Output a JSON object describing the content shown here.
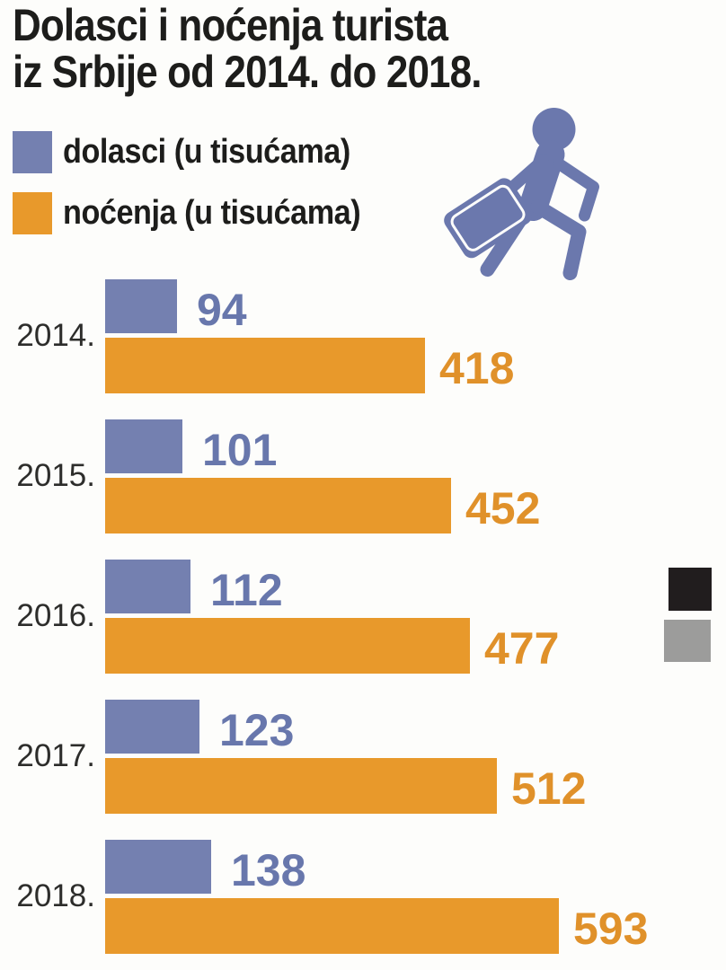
{
  "title": {
    "line1": "Dolasci i noćenja turista",
    "line2": "iz Srbije od 2014. do 2018."
  },
  "legend": {
    "dolasci": "dolasci (u tisućama)",
    "nocenja": "noćenja (u tisućama)"
  },
  "icon": {
    "name": "traveler-with-suitcase"
  },
  "colors": {
    "background": "#fdfdfb",
    "title_text": "#1d1d1b",
    "year_text": "#2d2d2b",
    "dolasci_bar": "#7480b0",
    "dolasci_text": "#6877ac",
    "nocenja_bar": "#e8992b",
    "nocenja_text": "#e0912a",
    "icon": "#6b78ad",
    "black_mark": "#211d1e",
    "gray_mark": "#9c9c9b"
  },
  "chart_data": {
    "type": "bar",
    "orientation": "horizontal",
    "title": "Dolasci i noćenja turista iz Srbije od 2014. do 2018.",
    "categories": [
      "2014.",
      "2015.",
      "2016.",
      "2017.",
      "2018."
    ],
    "series": [
      {
        "name": "dolasci (u tisućama)",
        "color": "#7480b0",
        "values": [
          94,
          101,
          112,
          123,
          138
        ]
      },
      {
        "name": "noćenja (u tisućama)",
        "color": "#e8992b",
        "values": [
          418,
          452,
          477,
          512,
          593
        ]
      }
    ],
    "unit": "u tisućama",
    "value_labels": true,
    "axes": "none",
    "grid": false,
    "legend_position": "top-left",
    "xlim": [
      0,
      593
    ]
  }
}
